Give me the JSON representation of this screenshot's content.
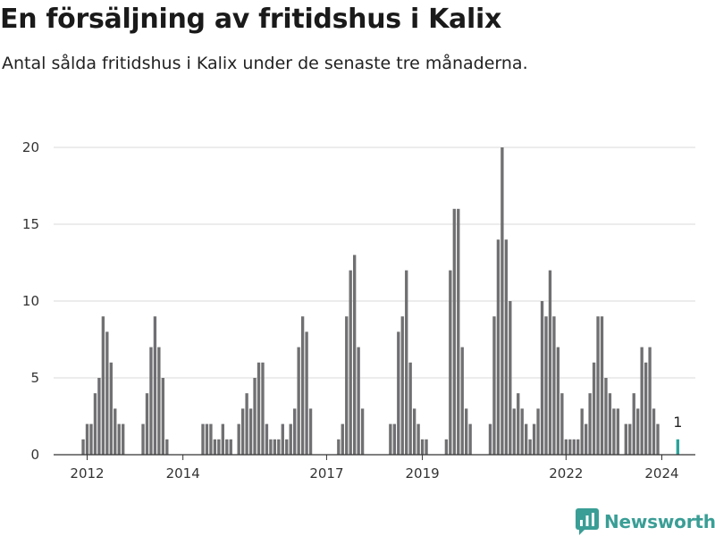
{
  "header": {
    "title": "En försäljning av fritidshus i Kalix",
    "subtitle": "Antal sålda fritidshus i Kalix under de senaste tre månaderna."
  },
  "brand": {
    "name": "Newsworthy",
    "icon": "newsworthy-logo-icon",
    "color": "#3a9e96"
  },
  "chart_data": {
    "type": "bar",
    "ylim": [
      0,
      20
    ],
    "yticks": [
      0,
      5,
      10,
      15,
      20
    ],
    "xlim": [
      2011.3,
      2024.7
    ],
    "xticks": [
      {
        "label": "2012",
        "value": 2012.0
      },
      {
        "label": "2014",
        "value": 2014.0
      },
      {
        "label": "2017",
        "value": 2017.0
      },
      {
        "label": "2019",
        "value": 2019.0
      },
      {
        "label": "2022",
        "value": 2022.0
      },
      {
        "label": "2024",
        "value": 2024.0
      }
    ],
    "bar_color": "#707073",
    "highlight_color": "#2aa39a",
    "grid": true,
    "annotation": "1",
    "start": "2011-04",
    "values": [
      0,
      0,
      0,
      0,
      0,
      0,
      0,
      0,
      1,
      2,
      2,
      4,
      5,
      9,
      8,
      6,
      3,
      2,
      2,
      0,
      0,
      0,
      0,
      2,
      4,
      7,
      9,
      7,
      5,
      1,
      0,
      0,
      0,
      0,
      0,
      0,
      0,
      0,
      2,
      2,
      2,
      1,
      1,
      2,
      1,
      1,
      0,
      2,
      3,
      4,
      3,
      5,
      6,
      6,
      2,
      1,
      1,
      1,
      2,
      1,
      2,
      3,
      7,
      9,
      8,
      3,
      0,
      0,
      0,
      0,
      0,
      0,
      1,
      2,
      9,
      12,
      13,
      7,
      3,
      0,
      0,
      0,
      0,
      0,
      0,
      2,
      2,
      8,
      9,
      12,
      6,
      3,
      2,
      1,
      1,
      0,
      0,
      0,
      0,
      1,
      12,
      16,
      16,
      7,
      3,
      2,
      0,
      0,
      0,
      0,
      2,
      9,
      14,
      20,
      14,
      10,
      3,
      4,
      3,
      2,
      1,
      2,
      3,
      10,
      9,
      12,
      9,
      7,
      4,
      1,
      1,
      1,
      1,
      3,
      2,
      4,
      6,
      9,
      9,
      5,
      4,
      3,
      3,
      0,
      2,
      2,
      4,
      3,
      7,
      6,
      7,
      3,
      2,
      0,
      0,
      0,
      0,
      1
    ]
  }
}
